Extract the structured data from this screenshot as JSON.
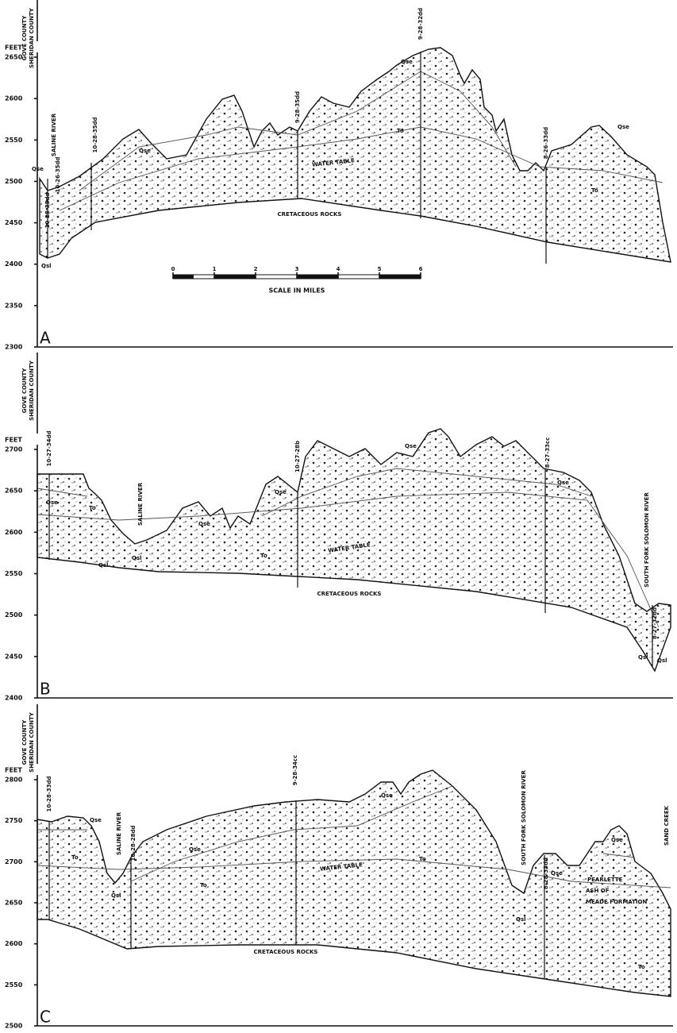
{
  "panels": [
    {
      "letter": "A",
      "axis_label": "FEET",
      "counties": [
        "GOVE COUNTY",
        "SHERIDAN COUNTY"
      ],
      "yticks": [
        2300,
        2350,
        2400,
        2450,
        2500,
        2550,
        2600,
        2650
      ],
      "labels": [
        "Qse",
        "SALINE RIVER",
        "10-28-35dd",
        "10-26-35dd",
        "Qsl",
        "10-28-35dd",
        "Qse",
        "9-28-35dd",
        "Qse",
        "9-28-32dd",
        "To",
        "WATER TABLE",
        "CRETACEOUS ROCKS",
        "8-26-33dd",
        "Qse",
        "To"
      ]
    },
    {
      "letter": "B",
      "axis_label": "FEET",
      "counties": [
        "GOVE COUNTY",
        "SHERIDAN COUNTY"
      ],
      "yticks": [
        2400,
        2450,
        2500,
        2550,
        2600,
        2650,
        2700
      ],
      "labels": [
        "10-27-34dd",
        "Qse",
        "To",
        "SALINE RIVER",
        "Qsl",
        "Qsl",
        "Qse",
        "10-27-28b",
        "Qse",
        "To",
        "WATER TABLE",
        "Qse",
        "8-27-33cc",
        "Qse",
        "CRETACEOUS ROCKS",
        "SOUTH FORK SOLOMON RIVER",
        "8-27-32dd",
        "Qsl",
        "Qsl"
      ]
    },
    {
      "letter": "C",
      "axis_label": "FEET",
      "counties": [
        "GOVE COUNTY",
        "SHERIDAN COUNTY"
      ],
      "yticks": [
        2500,
        2550,
        2600,
        2650,
        2700,
        2750,
        2800
      ],
      "labels": [
        "10-28-33dd",
        "Qse",
        "To",
        "SALINE RIVER",
        "10-28-28dd",
        "Qsl",
        "9-28-34cc",
        "Qse",
        "To",
        "WATER TABLE",
        "Qse",
        "To",
        "SOUTH FORK SOLOMON RIVER",
        "8-28-33dd",
        "Qsl",
        "Qse",
        "PEARLETTE",
        "ASH OF",
        "MEADE FORMATION",
        "Qse",
        "To",
        "SAND CREEK",
        "CRETACEOUS ROCKS"
      ]
    }
  ],
  "scale_bar": {
    "ticks": [
      0,
      1,
      2,
      3,
      4,
      5,
      6
    ],
    "label": "SCALE IN MILES"
  }
}
